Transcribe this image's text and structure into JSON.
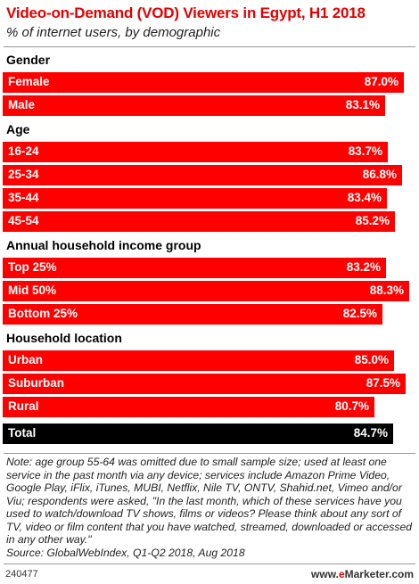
{
  "header": {
    "title": "Video-on-Demand (VOD) Viewers in Egypt, H1 2018",
    "subtitle": "% of internet users, by demographic"
  },
  "footer": {
    "note": "Note: age group 55-64 was omitted due to small sample size; used at least one service in the past month via any device; services include Amazon Prime Video, Google Play, iFlix, iTunes, MUBI, Netflix, Nile TV, ONTV, Shahid.net, Vimeo and/or Viu; respondents were asked, \"In the last month, which of these services have you used to watch/download TV shows, films or videos? Please think about any sort of TV, video or film content that you have watched, streamed, downloaded or accessed in any other way.\"",
    "source": "Source: GlobalWebIndex, Q1-Q2 2018, Aug 2018",
    "chart_id": "240477",
    "brand_prefix": "www.",
    "brand_e": "e",
    "brand_rest": "Marketer.com"
  },
  "colors": {
    "accent": "#ff0000",
    "title": "#e30000",
    "total_bar": "#000000"
  },
  "chart_data": {
    "type": "bar",
    "orientation": "horizontal",
    "title": "Video-on-Demand (VOD) Viewers in Egypt, H1 2018",
    "subtitle": "% of internet users, by demographic",
    "xlim": [
      0,
      90
    ],
    "grid": false,
    "groups": [
      {
        "name": "Gender",
        "items": [
          {
            "label": "Female",
            "value": 87.0,
            "text": "87.0%"
          },
          {
            "label": "Male",
            "value": 83.1,
            "text": "83.1%"
          }
        ]
      },
      {
        "name": "Age",
        "items": [
          {
            "label": "16-24",
            "value": 83.7,
            "text": "83.7%"
          },
          {
            "label": "25-34",
            "value": 86.8,
            "text": "86.8%"
          },
          {
            "label": "35-44",
            "value": 83.4,
            "text": "83.4%"
          },
          {
            "label": "45-54",
            "value": 85.2,
            "text": "85.2%"
          }
        ]
      },
      {
        "name": "Annual household income group",
        "items": [
          {
            "label": "Top 25%",
            "value": 83.2,
            "text": "83.2%"
          },
          {
            "label": "Mid 50%",
            "value": 88.3,
            "text": "88.3%"
          },
          {
            "label": "Bottom 25%",
            "value": 82.5,
            "text": "82.5%"
          }
        ]
      },
      {
        "name": "Household location",
        "items": [
          {
            "label": "Urban",
            "value": 85.0,
            "text": "85.0%"
          },
          {
            "label": "Suburban",
            "value": 87.5,
            "text": "87.5%"
          },
          {
            "label": "Rural",
            "value": 80.7,
            "text": "80.7%"
          }
        ]
      },
      {
        "name": "",
        "items": [
          {
            "label": "Total",
            "value": 84.7,
            "text": "84.7%",
            "total": true
          }
        ]
      }
    ]
  }
}
